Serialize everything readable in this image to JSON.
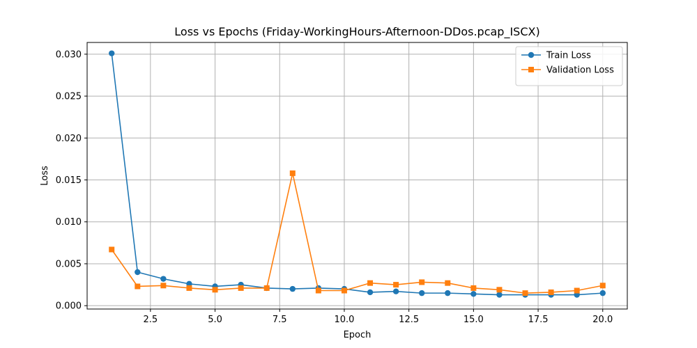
{
  "chart_data": {
    "type": "line",
    "title": "Loss vs Epochs (Friday-WorkingHours-Afternoon-DDos.pcap_ISCX)",
    "xlabel": "Epoch",
    "ylabel": "Loss",
    "xlim": [
      0.05,
      20.95
    ],
    "ylim": [
      -0.0004,
      0.0314
    ],
    "xticks": [
      2.5,
      5.0,
      7.5,
      10.0,
      12.5,
      15.0,
      17.5,
      20.0
    ],
    "xtick_labels": [
      "2.5",
      "5.0",
      "7.5",
      "10.0",
      "12.5",
      "15.0",
      "17.5",
      "20.0"
    ],
    "yticks": [
      0.0,
      0.005,
      0.01,
      0.015,
      0.02,
      0.025,
      0.03
    ],
    "ytick_labels": [
      "0.000",
      "0.005",
      "0.010",
      "0.015",
      "0.020",
      "0.025",
      "0.030"
    ],
    "grid": true,
    "legend_position": "top-right",
    "x": [
      1,
      2,
      3,
      4,
      5,
      6,
      7,
      8,
      9,
      10,
      11,
      12,
      13,
      14,
      15,
      16,
      17,
      18,
      19,
      20
    ],
    "series": [
      {
        "name": "Train Loss",
        "color": "#1f77b4",
        "marker": "circle",
        "values": [
          0.0301,
          0.004,
          0.0032,
          0.0026,
          0.0023,
          0.0025,
          0.0021,
          0.002,
          0.0021,
          0.002,
          0.0016,
          0.0017,
          0.0015,
          0.0015,
          0.0014,
          0.0013,
          0.0013,
          0.0013,
          0.0013,
          0.0015
        ]
      },
      {
        "name": "Validation Loss",
        "color": "#ff7f0e",
        "marker": "square",
        "values": [
          0.0067,
          0.0023,
          0.0024,
          0.0021,
          0.0019,
          0.0021,
          0.0021,
          0.0158,
          0.0018,
          0.0018,
          0.0027,
          0.0025,
          0.0028,
          0.0027,
          0.0021,
          0.0019,
          0.0015,
          0.0016,
          0.0018,
          0.0024
        ]
      }
    ]
  }
}
